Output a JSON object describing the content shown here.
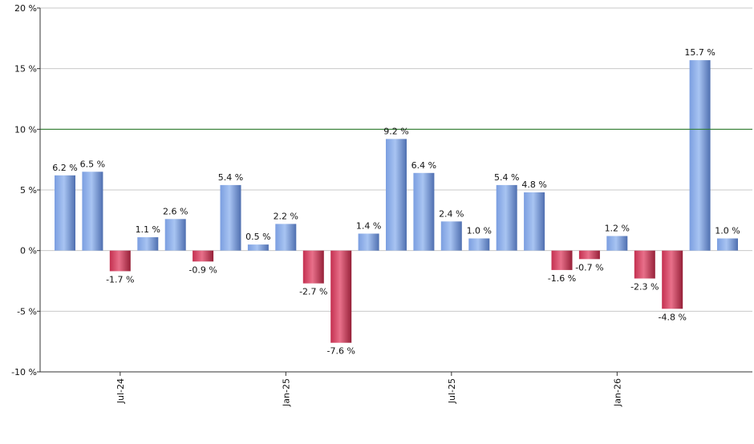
{
  "chart_data": {
    "type": "bar",
    "y_axis": {
      "min": -10,
      "max": 20,
      "ticks": [
        20,
        15,
        10,
        5,
        0,
        -5,
        -10
      ],
      "tick_labels": [
        "20 %",
        "15 %",
        "10 %",
        "5 %",
        "0 %",
        "-5 %",
        "-10 %"
      ]
    },
    "x_axis": {
      "labels": [
        "Jul-24",
        "Jan-25",
        "Jul-25",
        "Jan-26"
      ],
      "label_bar_index": [
        2,
        8,
        14,
        20
      ],
      "label_orientation": "vertical"
    },
    "values": [
      6.2,
      6.5,
      -1.7,
      1.1,
      2.6,
      -0.9,
      5.4,
      0.5,
      2.2,
      -2.7,
      -7.6,
      1.4,
      9.2,
      6.4,
      2.4,
      1.0,
      5.4,
      4.8,
      -1.6,
      -0.7,
      1.2,
      -2.3,
      -4.8,
      15.7,
      1.0
    ],
    "data_labels": [
      "6.2 %",
      "6.5 %",
      "-1.7 %",
      "1.1 %",
      "2.6 %",
      "-0.9 %",
      "5.4 %",
      "0.5 %",
      "2.2 %",
      "-2.7 %",
      "-7.6 %",
      "1.4 %",
      "9.2 %",
      "6.4 %",
      "2.4 %",
      "1.0 %",
      "5.4 %",
      "4.8 %",
      "-1.6 %",
      "-0.7 %",
      "1.2 %",
      "-2.3 %",
      "-4.8 %",
      "15.7 %",
      "1.0 %"
    ],
    "reference_line": {
      "value": 10,
      "color": "#2e7d2e"
    },
    "colors": {
      "positive": "#7fa3e0",
      "negative": "#d0405a",
      "grid": "#c8c8c8",
      "axis": "#333333"
    },
    "grid": true,
    "legend": "none"
  }
}
